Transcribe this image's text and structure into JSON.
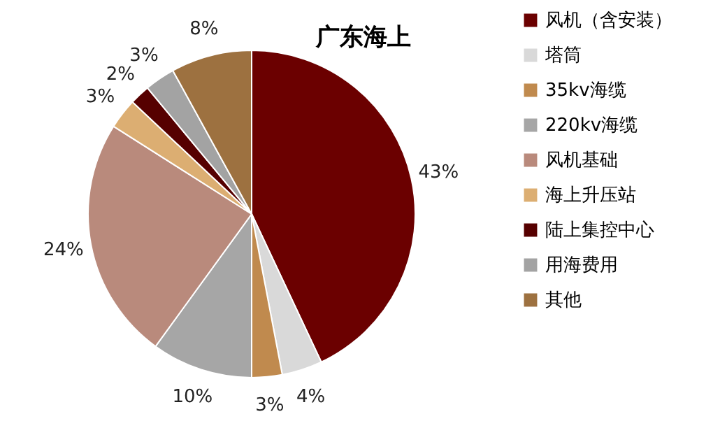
{
  "chart_data": {
    "type": "pie",
    "title": "广东海上",
    "categories": [
      "风机（含安装）",
      "塔筒",
      "35kv海缆",
      "220kv海缆",
      "风机基础",
      "海上升压站",
      "陆上集控中心",
      "用海费用",
      "其他"
    ],
    "values": [
      43,
      4,
      3,
      10,
      24,
      3,
      2,
      3,
      8
    ],
    "value_labels": [
      "43%",
      "4%",
      "3%",
      "10%",
      "24%",
      "3%",
      "2%",
      "3%",
      "8%"
    ],
    "colors": [
      "#6b0000",
      "#d9d9d9",
      "#c08a4e",
      "#a6a6a6",
      "#b98a7c",
      "#dcae72",
      "#560000",
      "#a3a3a3",
      "#9d7140"
    ],
    "legend": "right"
  }
}
